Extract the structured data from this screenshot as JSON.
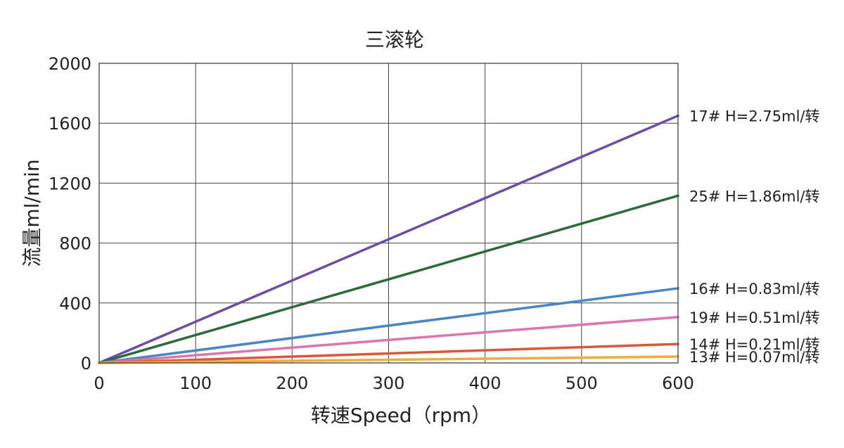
{
  "chart_data": {
    "type": "line",
    "title": "三滚轮",
    "xlabel": "转速Speed（rpm）",
    "ylabel": "流量ml/min",
    "xlim": [
      0,
      600
    ],
    "ylim": [
      0,
      2000
    ],
    "x_ticks": [
      0,
      100,
      200,
      300,
      400,
      500,
      600
    ],
    "y_ticks": [
      0,
      400,
      800,
      1200,
      1600,
      2000
    ],
    "grid": true,
    "legend": "inline-right",
    "series": [
      {
        "name": "17# H=2.75ml/转",
        "color": "#6b4ea3",
        "x": [
          0,
          600
        ],
        "y": [
          0,
          1650
        ]
      },
      {
        "name": "25# H=1.86ml/转",
        "color": "#2d6a3b",
        "x": [
          0,
          600
        ],
        "y": [
          0,
          1116
        ]
      },
      {
        "name": "16# H=0.83ml/转",
        "color": "#4a86c0",
        "x": [
          0,
          600
        ],
        "y": [
          0,
          498
        ]
      },
      {
        "name": "19# H=0.51ml/转",
        "color": "#de74ad",
        "x": [
          0,
          600
        ],
        "y": [
          0,
          306
        ]
      },
      {
        "name": "14# H=0.21ml/转",
        "color": "#d9583b",
        "x": [
          0,
          600
        ],
        "y": [
          0,
          126
        ]
      },
      {
        "name": "13# H=0.07ml/转",
        "color": "#f1ab3b",
        "x": [
          0,
          600
        ],
        "y": [
          0,
          42
        ]
      }
    ]
  }
}
